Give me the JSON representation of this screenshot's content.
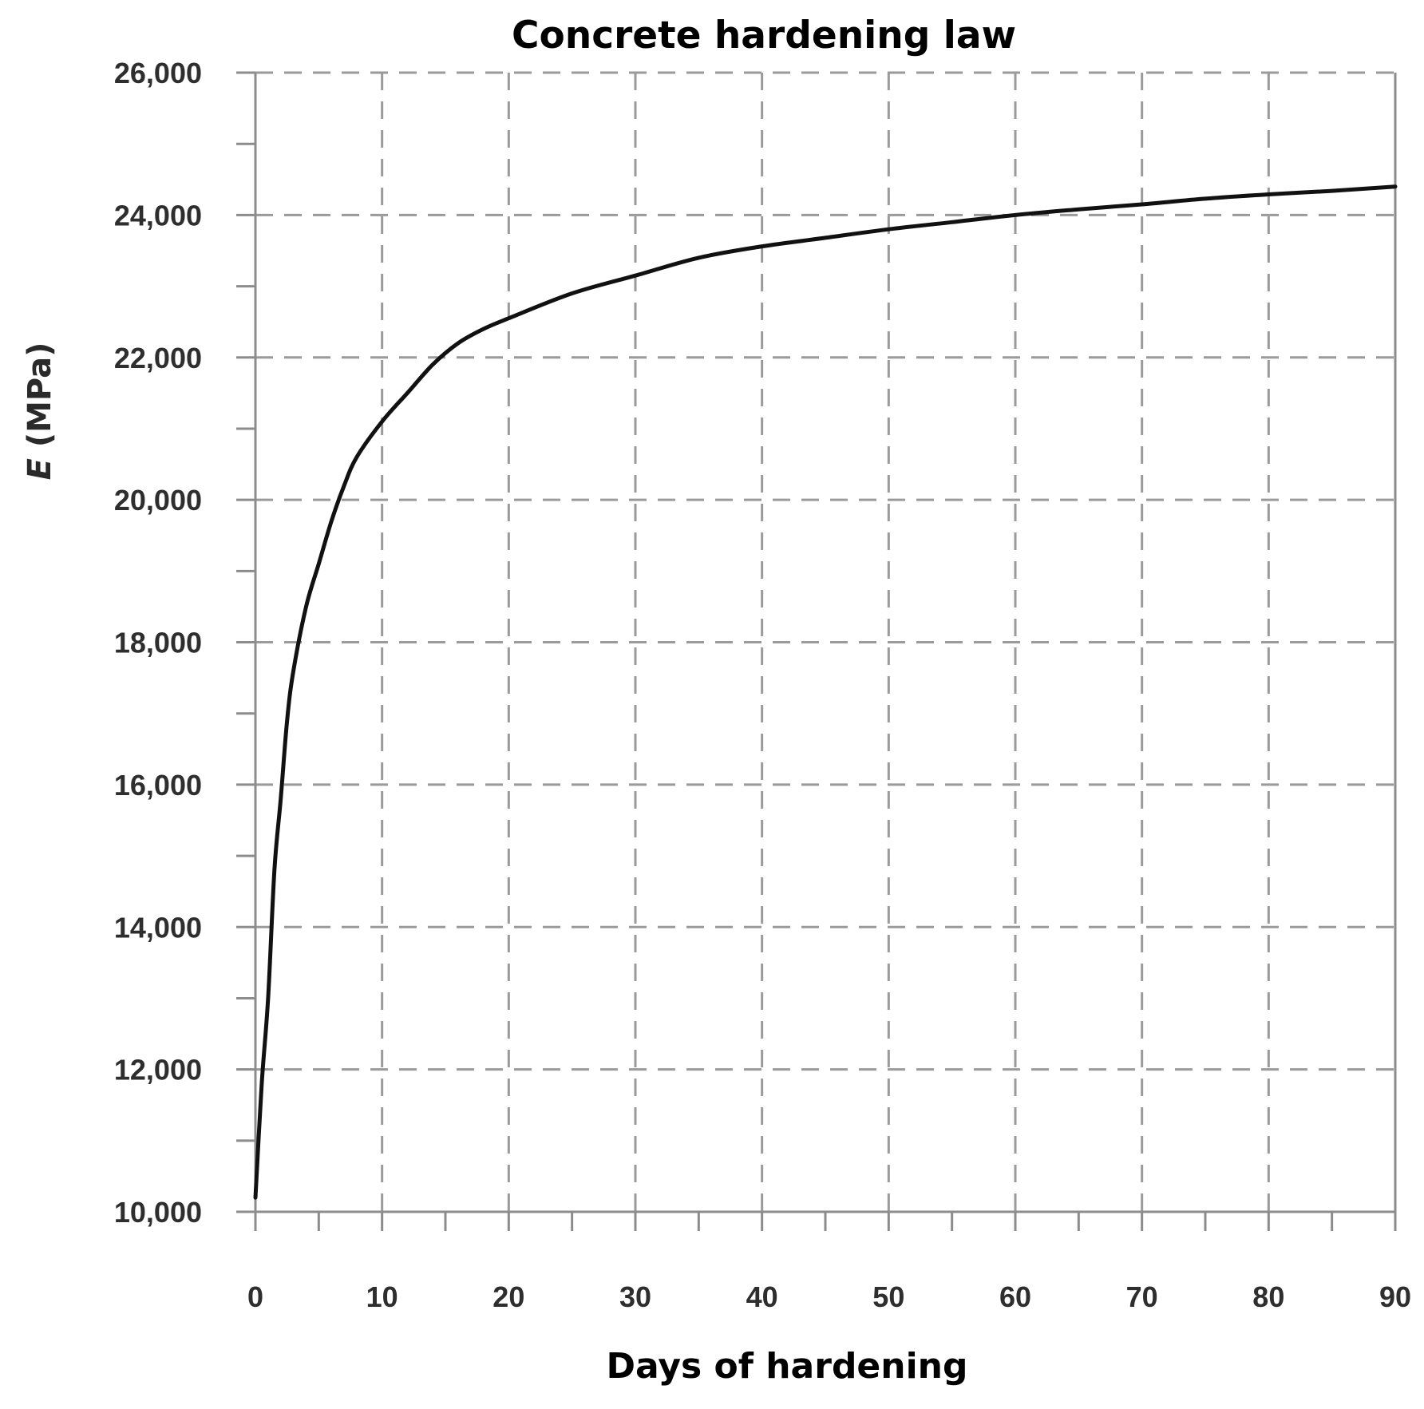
{
  "chart_data": {
    "type": "line",
    "title": "Concrete hardening law",
    "xlabel": "Days of hardening",
    "ylabel_symbol": "E",
    "ylabel_unit": " (MPa)",
    "xlim": [
      0,
      90
    ],
    "ylim": [
      10000,
      26000
    ],
    "x_ticks": [
      0,
      10,
      20,
      30,
      40,
      50,
      60,
      70,
      80,
      90
    ],
    "x_tick_labels": [
      "0",
      "10",
      "20",
      "30",
      "40",
      "50",
      "60",
      "70",
      "80",
      "90"
    ],
    "x_minor_step": 5,
    "y_ticks": [
      10000,
      12000,
      14000,
      16000,
      18000,
      20000,
      22000,
      24000,
      26000
    ],
    "y_tick_labels": [
      "10,000",
      "12,000",
      "14,000",
      "16,000",
      "18,000",
      "20,000",
      "22,000",
      "24,000",
      "26,000"
    ],
    "y_minor_step": 1000,
    "grid": true,
    "legend": false,
    "line_color": "#111111",
    "series": [
      {
        "x": [
          0,
          0.5,
          1,
          1.5,
          2,
          2.5,
          3,
          4,
          5,
          6,
          7,
          8,
          10,
          12,
          14,
          16,
          18,
          20,
          25,
          30,
          35,
          40,
          45,
          50,
          55,
          60,
          65,
          70,
          75,
          80,
          85,
          90
        ],
        "values": [
          10200,
          11800,
          13000,
          14800,
          15800,
          16900,
          17600,
          18500,
          19100,
          19700,
          20200,
          20600,
          21100,
          21500,
          21900,
          22200,
          22400,
          22550,
          22900,
          23150,
          23400,
          23560,
          23680,
          23800,
          23900,
          24000,
          24080,
          24150,
          24230,
          24290,
          24340,
          24400
        ]
      }
    ]
  }
}
